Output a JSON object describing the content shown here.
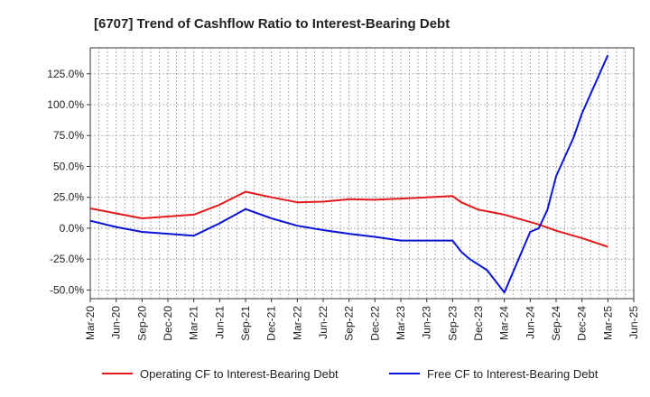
{
  "chart_data": {
    "type": "line",
    "title": "[6707]  Trend of Cashflow Ratio to Interest-Bearing Debt",
    "xlabel": "",
    "ylabel": "",
    "x_ticks": [
      "Mar-20",
      "Jun-20",
      "Sep-20",
      "Dec-20",
      "Mar-21",
      "Jun-21",
      "Sep-21",
      "Dec-21",
      "Mar-22",
      "Jun-22",
      "Sep-22",
      "Dec-22",
      "Mar-23",
      "Jun-23",
      "Sep-23",
      "Dec-23",
      "Mar-24",
      "Jun-24",
      "Sep-24",
      "Dec-24",
      "Mar-25",
      "Jun-25"
    ],
    "y_ticks": [
      "125.0%",
      "100.0%",
      "75.0%",
      "50.0%",
      "25.0%",
      "0.0%",
      "-25.0%",
      "-50.0%"
    ],
    "y_tick_values": [
      125,
      100,
      75,
      50,
      25,
      0,
      -25,
      -50
    ],
    "ylim": [
      -57,
      146
    ],
    "xlim": [
      "Mar-20",
      "Jun-25"
    ],
    "y_unit": "%",
    "grid": true,
    "legend_position": "bottom",
    "series": [
      {
        "name": "Operating CF to Interest-Bearing Debt",
        "color": "#e31a1c",
        "points": [
          [
            "Mar-20",
            16
          ],
          [
            "Sep-20",
            8
          ],
          [
            "Mar-21",
            11
          ],
          [
            "Jun-21",
            19
          ],
          [
            "Sep-21",
            29.5
          ],
          [
            "Dec-21",
            25
          ],
          [
            "Mar-22",
            21
          ],
          [
            "Jun-22",
            21.5
          ],
          [
            "Sep-22",
            23.5
          ],
          [
            "Dec-22",
            23
          ],
          [
            "Mar-23",
            24
          ],
          [
            "Jun-23",
            25
          ],
          [
            "Sep-23",
            26
          ],
          [
            "Oct-23",
            21
          ],
          [
            "Dec-23",
            15
          ],
          [
            "Mar-24",
            11
          ],
          [
            "Jun-24",
            5
          ],
          [
            "Jul-24",
            3
          ],
          [
            "Sep-24",
            -2
          ],
          [
            "Dec-24",
            -8
          ],
          [
            "Mar-25",
            -15
          ]
        ]
      },
      {
        "name": "Free CF to Interest-Bearing Debt",
        "color": "#0a14d2",
        "points": [
          [
            "Mar-20",
            6
          ],
          [
            "Jun-20",
            1
          ],
          [
            "Sep-20",
            -3
          ],
          [
            "Mar-21",
            -6
          ],
          [
            "Jun-21",
            4
          ],
          [
            "Sep-21",
            15.5
          ],
          [
            "Dec-21",
            8
          ],
          [
            "Mar-22",
            2
          ],
          [
            "Jun-22",
            -1.5
          ],
          [
            "Sep-22",
            -4.5
          ],
          [
            "Dec-22",
            -7
          ],
          [
            "Mar-23",
            -10
          ],
          [
            "Jun-23",
            -10
          ],
          [
            "Sep-23",
            -10
          ],
          [
            "Oct-23",
            -19
          ],
          [
            "Nov-23",
            -25
          ],
          [
            "Jan-24",
            -34
          ],
          [
            "Mar-24",
            -52
          ],
          [
            "Jun-24",
            -3
          ],
          [
            "Jul-24",
            0
          ],
          [
            "Aug-24",
            15
          ],
          [
            "Sep-24",
            42
          ],
          [
            "Nov-24",
            73
          ],
          [
            "Dec-24",
            93
          ],
          [
            "Mar-25",
            140
          ]
        ]
      }
    ]
  }
}
